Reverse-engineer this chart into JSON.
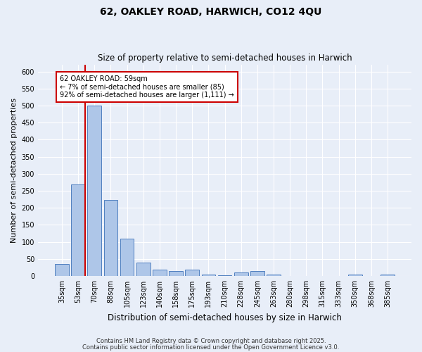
{
  "title1": "62, OAKLEY ROAD, HARWICH, CO12 4QU",
  "title2": "Size of property relative to semi-detached houses in Harwich",
  "xlabel": "Distribution of semi-detached houses by size in Harwich",
  "ylabel": "Number of semi-detached properties",
  "categories": [
    "35sqm",
    "53sqm",
    "70sqm",
    "88sqm",
    "105sqm",
    "123sqm",
    "140sqm",
    "158sqm",
    "175sqm",
    "193sqm",
    "210sqm",
    "228sqm",
    "245sqm",
    "263sqm",
    "280sqm",
    "298sqm",
    "315sqm",
    "333sqm",
    "350sqm",
    "368sqm",
    "385sqm"
  ],
  "values": [
    35,
    268,
    500,
    223,
    109,
    40,
    18,
    15,
    18,
    5,
    1,
    11,
    15,
    5,
    0,
    0,
    0,
    0,
    4,
    0,
    5
  ],
  "bar_color": "#aec6e8",
  "bar_edge_color": "#5080c0",
  "background_color": "#e8eef8",
  "grid_color": "#ffffff",
  "red_line_index": 1,
  "annotation_text": "62 OAKLEY ROAD: 59sqm\n← 7% of semi-detached houses are smaller (85)\n92% of semi-detached houses are larger (1,111) →",
  "annotation_box_color": "#ffffff",
  "annotation_box_edge": "#cc0000",
  "red_line_color": "#cc0000",
  "ylim": [
    0,
    620
  ],
  "yticks": [
    0,
    50,
    100,
    150,
    200,
    250,
    300,
    350,
    400,
    450,
    500,
    550,
    600
  ],
  "footer1": "Contains HM Land Registry data © Crown copyright and database right 2025.",
  "footer2": "Contains public sector information licensed under the Open Government Licence v3.0.",
  "title1_fontsize": 10,
  "title2_fontsize": 8.5,
  "xlabel_fontsize": 8.5,
  "ylabel_fontsize": 8,
  "tick_fontsize": 7,
  "annotation_fontsize": 7,
  "footer_fontsize": 6
}
